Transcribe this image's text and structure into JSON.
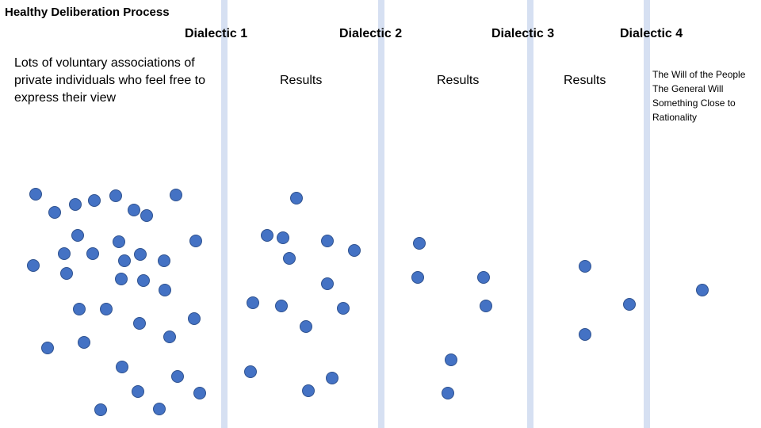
{
  "title": "Healthy Deliberation Process",
  "stages": [
    {
      "label": "Dialectic  1"
    },
    {
      "label": "Dialectic  2"
    },
    {
      "label": "Dialectic  3"
    },
    {
      "label": "Dialectic  4"
    }
  ],
  "intro_text": "Lots of voluntary associations of private individuals who feel free to express their view",
  "results_labels": [
    "Results",
    "Results",
    "Results"
  ],
  "outcome_lines": [
    "The Will of the People",
    "The General Will",
    "Something Close to",
    "Rationality"
  ],
  "colors": {
    "dot_fill": "#4472c4",
    "dot_stroke": "#2f528f",
    "divider": "#d6e0f2"
  }
}
